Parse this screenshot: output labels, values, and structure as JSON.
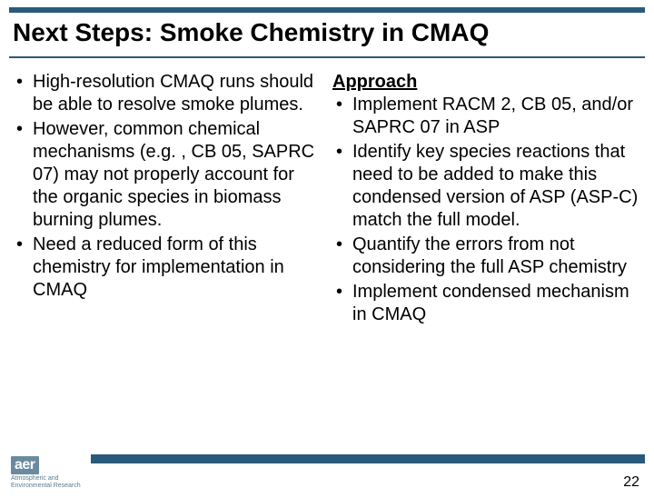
{
  "colors": {
    "bar": "#2a5a7a",
    "logo_bg": "#6a8aa0",
    "text": "#000000",
    "bg": "#ffffff"
  },
  "title": "Next Steps: Smoke Chemistry in CMAQ",
  "left_bullets": [
    "High-resolution CMAQ runs should be able to resolve smoke plumes.",
    "However, common chemical mechanisms (e.g. , CB 05, SAPRC 07) may not properly account for the organic species in biomass burning plumes.",
    "Need a reduced form of this chemistry for implementation in CMAQ"
  ],
  "right_heading": "Approach",
  "right_bullets": [
    "Implement RACM 2, CB 05, and/or SAPRC 07 in ASP",
    "Identify key species reactions that need to be added to make this condensed version of ASP (ASP-C) match the full model.",
    "Quantify the errors from not considering the full ASP chemistry",
    "Implement condensed mechanism in CMAQ"
  ],
  "logo": {
    "text": "aer",
    "sub1": "Atmospheric and",
    "sub2": "Environmental Research"
  },
  "page_number": "22"
}
